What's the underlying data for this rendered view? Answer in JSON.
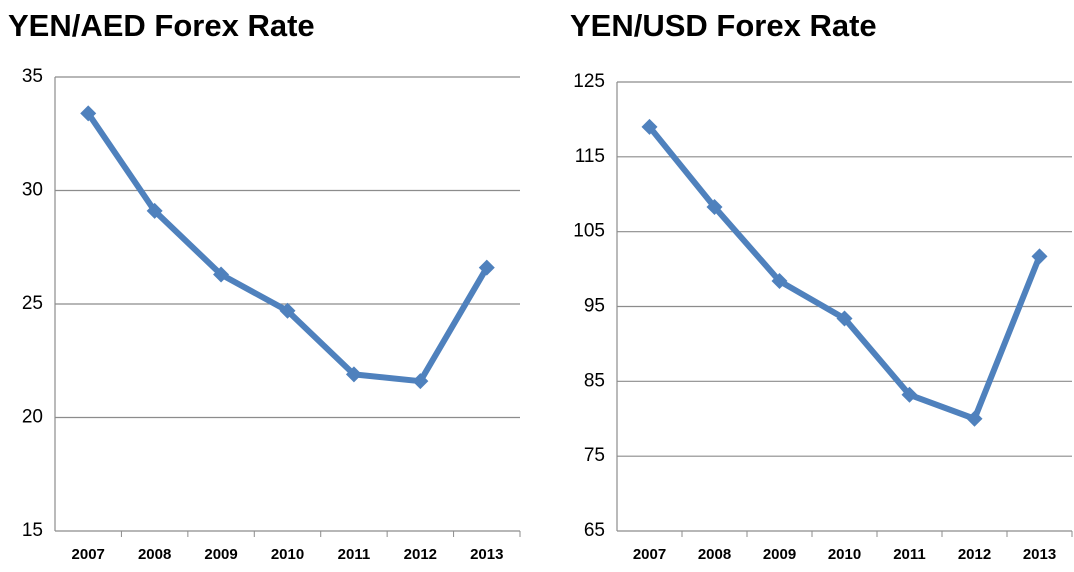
{
  "chart_data": [
    {
      "type": "line",
      "title": "YEN/AED Forex Rate",
      "categories": [
        "2007",
        "2008",
        "2009",
        "2010",
        "2011",
        "2012",
        "2013"
      ],
      "series": [
        {
          "color": "#4f81bd",
          "values": [
            33.4,
            29.1,
            26.3,
            24.7,
            21.9,
            21.6,
            26.6
          ]
        }
      ],
      "ylim": [
        15,
        35
      ],
      "yticks": [
        15,
        20,
        25,
        30,
        35
      ],
      "grid": true
    },
    {
      "type": "line",
      "title": "YEN/USD Forex Rate",
      "categories": [
        "2007",
        "2008",
        "2009",
        "2010",
        "2011",
        "2012",
        "2013"
      ],
      "series": [
        {
          "color": "#4f81bd",
          "values": [
            119,
            108.3,
            98.4,
            93.4,
            83.2,
            80,
            101.7
          ]
        }
      ],
      "ylim": [
        65,
        125
      ],
      "yticks": [
        65,
        75,
        85,
        95,
        105,
        115,
        125
      ],
      "grid": true
    }
  ]
}
